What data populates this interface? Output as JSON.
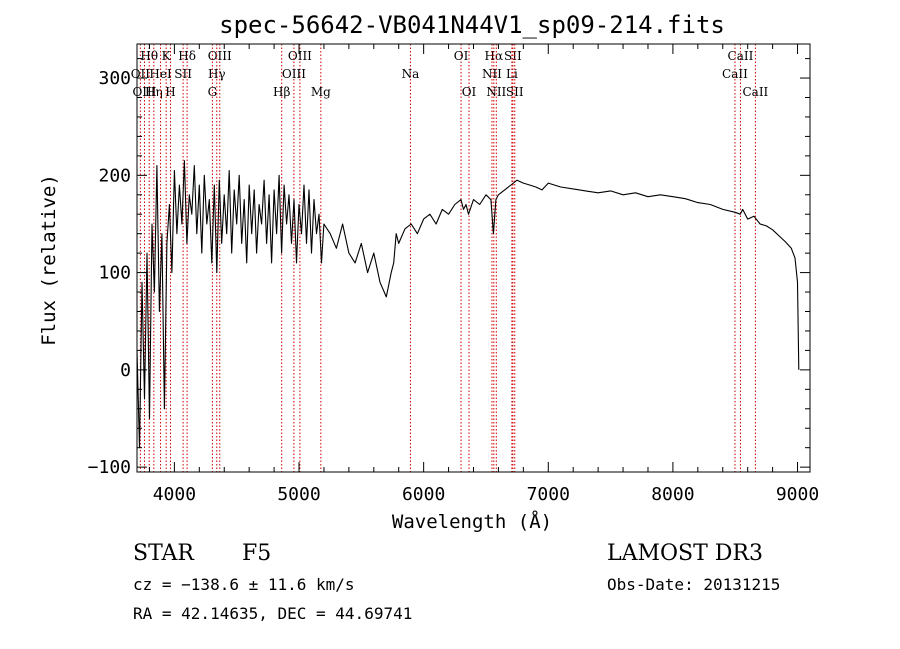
{
  "chart_data": {
    "type": "line",
    "title": "spec-56642-VB041N44V1_sp09-214.fits",
    "xlabel": "Wavelength (Å)",
    "ylabel": "Flux (relative)",
    "xlim": [
      3700,
      9100
    ],
    "ylim": [
      -105,
      335
    ],
    "xticks": [
      4000,
      5000,
      6000,
      7000,
      8000,
      9000
    ],
    "yticks": [
      -100,
      0,
      100,
      200,
      300
    ],
    "xtick_labels": [
      "4000",
      "5000",
      "6000",
      "7000",
      "8000",
      "9000"
    ],
    "ytick_labels": [
      "−100",
      "0",
      "100",
      "200",
      "300"
    ],
    "series": [
      {
        "name": "spectrum",
        "color": "#000000",
        "x": [
          3700,
          3720,
          3740,
          3760,
          3780,
          3800,
          3820,
          3840,
          3860,
          3880,
          3900,
          3920,
          3940,
          3960,
          3980,
          4000,
          4020,
          4040,
          4060,
          4080,
          4100,
          4120,
          4140,
          4160,
          4180,
          4200,
          4220,
          4240,
          4260,
          4280,
          4300,
          4320,
          4340,
          4360,
          4380,
          4400,
          4420,
          4440,
          4460,
          4480,
          4500,
          4520,
          4540,
          4560,
          4580,
          4600,
          4620,
          4640,
          4660,
          4680,
          4700,
          4720,
          4740,
          4760,
          4780,
          4800,
          4820,
          4840,
          4860,
          4880,
          4900,
          4920,
          4940,
          4960,
          4980,
          5000,
          5020,
          5040,
          5060,
          5080,
          5100,
          5120,
          5140,
          5160,
          5180,
          5200,
          5250,
          5300,
          5350,
          5400,
          5450,
          5500,
          5550,
          5600,
          5650,
          5700,
          5740,
          5760,
          5780,
          5800,
          5850,
          5900,
          5950,
          6000,
          6050,
          6100,
          6150,
          6200,
          6250,
          6300,
          6320,
          6340,
          6360,
          6400,
          6450,
          6500,
          6540,
          6560,
          6580,
          6600,
          6650,
          6700,
          6750,
          6800,
          6850,
          6900,
          6950,
          7000,
          7100,
          7200,
          7300,
          7400,
          7500,
          7600,
          7700,
          7800,
          7900,
          8000,
          8100,
          8200,
          8300,
          8400,
          8500,
          8540,
          8560,
          8600,
          8650,
          8700,
          8750,
          8800,
          8850,
          8900,
          8950,
          8980,
          9000,
          9010
        ],
        "y": [
          20,
          -80,
          90,
          -30,
          120,
          -50,
          150,
          80,
          210,
          60,
          140,
          -40,
          130,
          170,
          100,
          205,
          140,
          190,
          150,
          215,
          130,
          180,
          160,
          210,
          140,
          190,
          120,
          200,
          150,
          175,
          110,
          190,
          100,
          195,
          130,
          180,
          140,
          205,
          120,
          185,
          150,
          200,
          130,
          175,
          110,
          190,
          140,
          185,
          120,
          170,
          150,
          195,
          130,
          180,
          110,
          185,
          140,
          200,
          120,
          190,
          150,
          180,
          130,
          175,
          110,
          170,
          140,
          190,
          130,
          185,
          120,
          175,
          140,
          160,
          110,
          150,
          140,
          125,
          150,
          120,
          110,
          130,
          100,
          120,
          90,
          75,
          100,
          110,
          140,
          130,
          145,
          150,
          140,
          155,
          160,
          150,
          165,
          160,
          170,
          175,
          165,
          170,
          160,
          175,
          170,
          180,
          175,
          140,
          175,
          180,
          185,
          190,
          195,
          192,
          190,
          188,
          185,
          192,
          188,
          186,
          184,
          182,
          184,
          180,
          182,
          178,
          180,
          178,
          176,
          172,
          170,
          165,
          162,
          160,
          165,
          155,
          158,
          150,
          148,
          144,
          138,
          132,
          125,
          115,
          90,
          0
        ]
      }
    ],
    "emission_lines": [
      {
        "label": "Hθ",
        "x": 3798,
        "row": 0
      },
      {
        "label": "OII",
        "x": 3727,
        "row": 1
      },
      {
        "label": "OIII",
        "x": 3760,
        "row": 2
      },
      {
        "label": "Hη",
        "x": 3835,
        "row": 2
      },
      {
        "label": "K",
        "x": 3934,
        "row": 0
      },
      {
        "label": "HeI",
        "x": 3889,
        "row": 1
      },
      {
        "label": "H",
        "x": 3969,
        "row": 2
      },
      {
        "label": "SII",
        "x": 4070,
        "row": 1
      },
      {
        "label": "Hδ",
        "x": 4102,
        "row": 0
      },
      {
        "label": "OIII",
        "x": 4364,
        "row": 0
      },
      {
        "label": "Hγ",
        "x": 4340,
        "row": 1
      },
      {
        "label": "G",
        "x": 4305,
        "row": 2
      },
      {
        "label": "Hβ",
        "x": 4861,
        "row": 2
      },
      {
        "label": "OIII",
        "x": 5007,
        "row": 0
      },
      {
        "label": "OIII",
        "x": 4959,
        "row": 1
      },
      {
        "label": "Mg",
        "x": 5175,
        "row": 2
      },
      {
        "label": "Na",
        "x": 5894,
        "row": 1
      },
      {
        "label": "OI",
        "x": 6300,
        "row": 0
      },
      {
        "label": "OI",
        "x": 6364,
        "row": 2
      },
      {
        "label": "Hα",
        "x": 6563,
        "row": 0
      },
      {
        "label": "NII",
        "x": 6548,
        "row": 1
      },
      {
        "label": "NII",
        "x": 6583,
        "row": 2
      },
      {
        "label": "SII",
        "x": 6716,
        "row": 0
      },
      {
        "label": "Li",
        "x": 6708,
        "row": 1
      },
      {
        "label": "SII",
        "x": 6731,
        "row": 2
      },
      {
        "label": "CaII",
        "x": 8542,
        "row": 0
      },
      {
        "label": "CaII",
        "x": 8498,
        "row": 1
      },
      {
        "label": "CaII",
        "x": 8662,
        "row": 2
      }
    ],
    "grid": false,
    "legend": "none"
  },
  "info": {
    "object_class": "STAR",
    "subclass": "F5",
    "survey": "LAMOST DR3",
    "cz": "cz = −138.6 ± 11.6 km/s",
    "obs_date": "Obs-Date: 20131215",
    "coords": "RA =  42.14635, DEC =  44.69741"
  }
}
